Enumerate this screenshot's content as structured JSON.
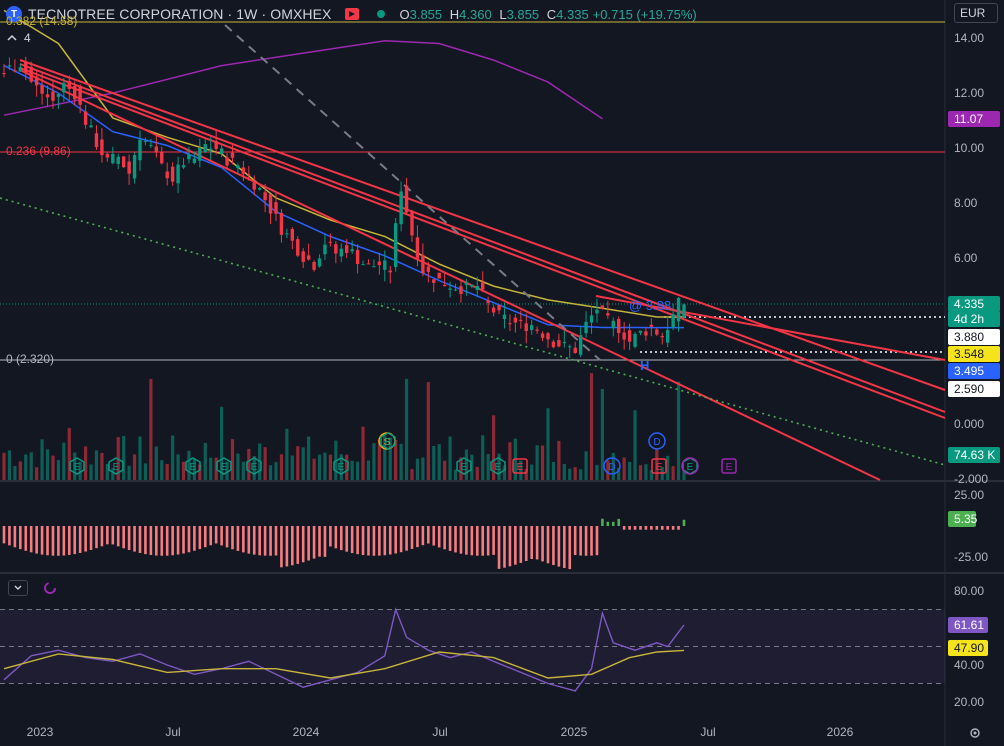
{
  "header": {
    "logo_letter": "T",
    "title": "TECNOTREE CORPORATION · 1W · OMXHEX",
    "ohlc": [
      {
        "k": "O",
        "v": "3.855"
      },
      {
        "k": "H",
        "v": "4.360"
      },
      {
        "k": "L",
        "v": "3.855"
      },
      {
        "k": "C",
        "v": "4.335"
      }
    ],
    "change": "+0.715 (+19.75%)",
    "currency": "EUR",
    "indicators_count": "4"
  },
  "colors": {
    "background": "#131722",
    "up": "#089981",
    "down": "#f23645",
    "channel": "#f23645",
    "ma_yellow": "#c7b43a",
    "ma_blue": "#2962ff",
    "ma_purple": "#9c27b0",
    "rsi": "#7e57c2",
    "rsi_ma": "#c7b43a"
  },
  "fib_labels": {
    "top": "0.382 (14.58)",
    "mid": "0.236 (9.86)",
    "low": "0 (2.320)"
  },
  "annotations": {
    "pivot": "H",
    "text_388": "@ 3.88"
  },
  "events": [
    "E",
    "E",
    "E",
    "E",
    "E",
    "E",
    "S",
    "E",
    "E",
    "E",
    "D",
    "E",
    "E",
    "D",
    "E",
    "E"
  ],
  "price_badges": [
    {
      "label": "11.07",
      "bg": "#9c27b0",
      "fg": "#ffffff"
    },
    {
      "label": "4.335",
      "bg": "#089981",
      "fg": "#ffffff"
    },
    {
      "label": "4d 2h",
      "bg": "#089981",
      "fg": "#ffffff"
    },
    {
      "label": "3.880",
      "bg": "#ffffff",
      "fg": "#131722"
    },
    {
      "label": "3.548",
      "bg": "#f5e31b",
      "fg": "#131722"
    },
    {
      "label": "3.495",
      "bg": "#2962ff",
      "fg": "#ffffff"
    },
    {
      "label": "2.590",
      "bg": "#ffffff",
      "fg": "#131722"
    },
    {
      "label": "74.63 K",
      "bg": "#089981",
      "fg": "#ffffff"
    }
  ],
  "macd_badge": "5.35",
  "rsi_badges": [
    {
      "label": "61.61",
      "bg": "#7e57c2",
      "fg": "#ffffff"
    },
    {
      "label": "47.90",
      "bg": "#f5e31b",
      "fg": "#131722"
    }
  ],
  "chart_data": [
    {
      "type": "candlestick",
      "title": "TECNOTREE CORPORATION · 1W · OMXHEX",
      "y_axis": {
        "ticks": [
          "14.00",
          "12.00",
          "10.00",
          "8.00",
          "6.00",
          "0.000",
          "-2.000"
        ],
        "min": -2.0,
        "max": 14.5
      },
      "x_axis": {
        "ticks": [
          "2023",
          "Jul",
          "2024",
          "Jul",
          "2025",
          "Jul",
          "2026"
        ]
      },
      "series": [
        {
          "name": "close",
          "points": [
            [
              0,
              12.6
            ],
            [
              2,
              12.9
            ],
            [
              4,
              13.1
            ],
            [
              6,
              12.4
            ],
            [
              8,
              12.0
            ],
            [
              10,
              11.7
            ],
            [
              12,
              12.3
            ],
            [
              14,
              12.0
            ],
            [
              16,
              11.0
            ],
            [
              18,
              10.2
            ],
            [
              20,
              9.5
            ],
            [
              22,
              9.7
            ],
            [
              24,
              9.1
            ],
            [
              26,
              10.5
            ],
            [
              28,
              10.0
            ],
            [
              30,
              9.3
            ],
            [
              32,
              8.9
            ],
            [
              34,
              9.5
            ],
            [
              36,
              9.6
            ],
            [
              38,
              10.1
            ],
            [
              40,
              10.0
            ],
            [
              42,
              9.6
            ],
            [
              44,
              9.4
            ],
            [
              46,
              9.0
            ],
            [
              48,
              8.5
            ],
            [
              50,
              7.8
            ],
            [
              52,
              7.1
            ],
            [
              54,
              6.6
            ],
            [
              56,
              6.1
            ],
            [
              58,
              5.8
            ],
            [
              60,
              6.6
            ],
            [
              62,
              6.2
            ],
            [
              64,
              6.4
            ],
            [
              66,
              6.0
            ],
            [
              68,
              5.7
            ],
            [
              70,
              5.8
            ],
            [
              72,
              5.6
            ],
            [
              74,
              8.6
            ],
            [
              76,
              6.9
            ],
            [
              78,
              5.6
            ],
            [
              80,
              5.3
            ],
            [
              82,
              5.1
            ],
            [
              84,
              5.0
            ],
            [
              86,
              4.9
            ],
            [
              88,
              5.0
            ],
            [
              90,
              4.3
            ],
            [
              92,
              3.9
            ],
            [
              94,
              3.7
            ],
            [
              96,
              3.6
            ],
            [
              98,
              3.6
            ],
            [
              100,
              3.3
            ],
            [
              102,
              3.0
            ],
            [
              104,
              2.8
            ],
            [
              106,
              2.7
            ],
            [
              108,
              3.6
            ],
            [
              110,
              4.2
            ],
            [
              112,
              3.7
            ],
            [
              114,
              3.5
            ],
            [
              116,
              3.0
            ],
            [
              118,
              3.3
            ],
            [
              120,
              3.5
            ],
            [
              122,
              3.2
            ],
            [
              124,
              3.9
            ],
            [
              125,
              4.335
            ]
          ]
        }
      ],
      "moving_averages": {
        "yellow": [
          [
            0,
            15.0
          ],
          [
            10,
            13.8
          ],
          [
            20,
            11.1
          ],
          [
            30,
            10.4
          ],
          [
            40,
            9.8
          ],
          [
            50,
            8.2
          ],
          [
            60,
            7.4
          ],
          [
            70,
            6.8
          ],
          [
            80,
            5.8
          ],
          [
            90,
            5.0
          ],
          [
            100,
            4.5
          ],
          [
            110,
            4.2
          ],
          [
            120,
            3.88
          ],
          [
            125,
            3.88
          ]
        ],
        "blue": [
          [
            0,
            13.0
          ],
          [
            10,
            12.0
          ],
          [
            20,
            10.6
          ],
          [
            30,
            10.1
          ],
          [
            40,
            9.3
          ],
          [
            50,
            7.7
          ],
          [
            60,
            6.8
          ],
          [
            70,
            6.1
          ],
          [
            80,
            5.2
          ],
          [
            90,
            4.4
          ],
          [
            100,
            3.6
          ],
          [
            110,
            3.5
          ],
          [
            120,
            3.495
          ],
          [
            125,
            3.495
          ]
        ],
        "purple": [
          [
            0,
            11.2
          ],
          [
            20,
            12.0
          ],
          [
            40,
            13.0
          ],
          [
            60,
            13.6
          ],
          [
            70,
            13.9
          ],
          [
            80,
            13.8
          ],
          [
            90,
            13.2
          ],
          [
            100,
            12.4
          ],
          [
            110,
            11.07
          ]
        ]
      },
      "last_price": 4.335
    },
    {
      "type": "bar",
      "title": "",
      "y_axis": {
        "ticks": [
          "25.00",
          "-25.00"
        ],
        "min": -40,
        "max": 30
      },
      "last_value": 5.35
    },
    {
      "type": "line",
      "title": "",
      "y_axis": {
        "ticks": [
          "80.00",
          "40.00",
          "20.00"
        ],
        "min": 15,
        "max": 85
      },
      "levels": [
        70,
        50,
        30
      ],
      "rsi": [
        [
          0,
          32
        ],
        [
          5,
          45
        ],
        [
          10,
          48
        ],
        [
          15,
          44
        ],
        [
          20,
          42
        ],
        [
          25,
          46
        ],
        [
          30,
          40
        ],
        [
          35,
          35
        ],
        [
          40,
          38
        ],
        [
          45,
          42
        ],
        [
          50,
          35
        ],
        [
          55,
          28
        ],
        [
          60,
          32
        ],
        [
          65,
          36
        ],
        [
          70,
          45
        ],
        [
          72,
          70
        ],
        [
          74,
          55
        ],
        [
          78,
          48
        ],
        [
          82,
          44
        ],
        [
          86,
          47
        ],
        [
          90,
          42
        ],
        [
          95,
          36
        ],
        [
          100,
          30
        ],
        [
          105,
          26
        ],
        [
          108,
          38
        ],
        [
          110,
          68
        ],
        [
          112,
          52
        ],
        [
          116,
          48
        ],
        [
          120,
          52
        ],
        [
          122,
          50
        ],
        [
          125,
          61.61
        ]
      ],
      "rsi_ma": [
        [
          0,
          38
        ],
        [
          10,
          46
        ],
        [
          20,
          43
        ],
        [
          30,
          36
        ],
        [
          40,
          38
        ],
        [
          50,
          38
        ],
        [
          60,
          33
        ],
        [
          70,
          38
        ],
        [
          80,
          47
        ],
        [
          90,
          44
        ],
        [
          100,
          33
        ],
        [
          108,
          35
        ],
        [
          115,
          44
        ],
        [
          120,
          47
        ],
        [
          125,
          47.9
        ]
      ],
      "last_values": [
        61.61,
        47.9
      ]
    }
  ]
}
